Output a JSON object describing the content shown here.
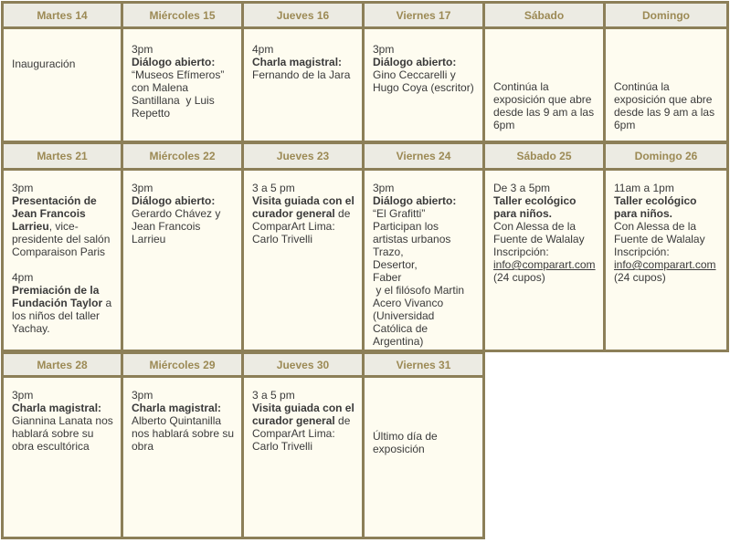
{
  "colors": {
    "border": "#8c7f58",
    "header_bg": "#ecebe3",
    "header_text": "#9c8a55",
    "cell_bg": "#fefcf0"
  },
  "weeks": [
    {
      "days": [
        {
          "header": "Martes 14",
          "lines": [
            [
              {
                "t": "Inauguración"
              }
            ]
          ]
        },
        {
          "header": "Miércoles 15",
          "lines": [
            [
              {
                "t": "3pm"
              }
            ],
            [
              {
                "t": "Diálogo abierto:",
                "b": true
              }
            ],
            [
              {
                "t": "“Museos Efímeros”"
              }
            ],
            [
              {
                "t": "con Malena"
              }
            ],
            [
              {
                "t": "Santillana  y Luis"
              }
            ],
            [
              {
                "t": "Repetto"
              }
            ]
          ]
        },
        {
          "header": "Jueves 16",
          "lines": [
            [
              {
                "t": "4pm"
              }
            ],
            [
              {
                "t": "Charla magistral:",
                "b": true
              }
            ],
            [
              {
                "t": "Fernando de la Jara"
              }
            ]
          ]
        },
        {
          "header": "Viernes 17",
          "lines": [
            [
              {
                "t": "3pm"
              }
            ],
            [
              {
                "t": "Diálogo abierto:",
                "b": true
              }
            ],
            [
              {
                "t": "Gino Ceccarelli y"
              }
            ],
            [
              {
                "t": "Hugo Coya (escritor)"
              }
            ]
          ]
        },
        {
          "header": "Sábado",
          "lines": [
            [
              {
                "t": "Continúa la"
              }
            ],
            [
              {
                "t": "exposición que abre"
              }
            ],
            [
              {
                "t": "desde las 9 am a las"
              }
            ],
            [
              {
                "t": "6pm"
              }
            ]
          ]
        },
        {
          "header": "Domingo",
          "lines": [
            [
              {
                "t": "Continúa la"
              }
            ],
            [
              {
                "t": "exposición que abre"
              }
            ],
            [
              {
                "t": "desde las 9 am a las"
              }
            ],
            [
              {
                "t": "6pm"
              }
            ]
          ]
        }
      ]
    },
    {
      "days": [
        {
          "header": "Martes 21",
          "lines": [
            [
              {
                "t": "3pm"
              }
            ],
            [
              {
                "t": "Presentación de",
                "b": true
              }
            ],
            [
              {
                "t": "Jean Francois",
                "b": true
              }
            ],
            [
              {
                "t": "Larrieu",
                "b": true
              },
              {
                "t": ", vice-"
              }
            ],
            [
              {
                "t": "presidente del salón"
              }
            ],
            [
              {
                "t": "Comparaison Paris"
              }
            ],
            [],
            [
              {
                "t": "4pm"
              }
            ],
            [
              {
                "t": "Premiación de la",
                "b": true
              }
            ],
            [
              {
                "t": "Fundación Taylor",
                "b": true
              },
              {
                "t": " a"
              }
            ],
            [
              {
                "t": "los niños del taller"
              }
            ],
            [
              {
                "t": "Yachay."
              }
            ]
          ]
        },
        {
          "header": "Miércoles 22",
          "lines": [
            [
              {
                "t": "3pm"
              }
            ],
            [
              {
                "t": "Diálogo abierto:",
                "b": true
              }
            ],
            [
              {
                "t": "Gerardo Chávez y"
              }
            ],
            [
              {
                "t": "Jean Francois"
              }
            ],
            [
              {
                "t": "Larrieu"
              }
            ]
          ]
        },
        {
          "header": "Jueves 23",
          "lines": [
            [
              {
                "t": "3 a 5 pm"
              }
            ],
            [
              {
                "t": "Visita guiada con el",
                "b": true
              }
            ],
            [
              {
                "t": "curador general",
                "b": true
              },
              {
                "t": " de"
              }
            ],
            [
              {
                "t": "ComparArt Lima:"
              }
            ],
            [
              {
                "t": "Carlo Trivelli"
              }
            ]
          ]
        },
        {
          "header": "Viernes 24",
          "lines": [
            [
              {
                "t": "3pm"
              }
            ],
            [
              {
                "t": "Diálogo abierto:",
                "b": true
              }
            ],
            [
              {
                "t": "“El Grafitti”"
              }
            ],
            [
              {
                "t": "Participan los"
              }
            ],
            [
              {
                "t": "artistas urbanos"
              }
            ],
            [
              {
                "t": "Trazo,"
              }
            ],
            [
              {
                "t": "Desertor,"
              }
            ],
            [
              {
                "t": "Faber"
              }
            ],
            [
              {
                "t": " y el filósofo Martin"
              }
            ],
            [
              {
                "t": "Acero Vivanco"
              }
            ],
            [
              {
                "t": "(Universidad"
              }
            ],
            [
              {
                "t": "Católica de"
              }
            ],
            [
              {
                "t": "Argentina)"
              }
            ]
          ]
        },
        {
          "header": "Sábado 25",
          "lines": [
            [
              {
                "t": "De 3 a 5pm"
              }
            ],
            [
              {
                "t": "Taller ecológico",
                "b": true
              }
            ],
            [
              {
                "t": "para niños.",
                "b": true
              }
            ],
            [
              {
                "t": "Con Alessa de la"
              }
            ],
            [
              {
                "t": "Fuente de Walalay"
              }
            ],
            [
              {
                "t": "Inscripción:"
              }
            ],
            [
              {
                "t": "info@comparart.com",
                "link": true
              }
            ],
            [
              {
                "t": "(24 cupos)"
              }
            ]
          ]
        },
        {
          "header": "Domingo 26",
          "lines": [
            [
              {
                "t": "11am a 1pm"
              }
            ],
            [
              {
                "t": "Taller ecológico",
                "b": true
              }
            ],
            [
              {
                "t": "para niños.",
                "b": true
              }
            ],
            [
              {
                "t": "Con Alessa de la"
              }
            ],
            [
              {
                "t": "Fuente de Walalay"
              }
            ],
            [
              {
                "t": "Inscripción:"
              }
            ],
            [
              {
                "t": "info@comparart.com",
                "link": true
              }
            ],
            [
              {
                "t": "(24 cupos)"
              }
            ]
          ]
        }
      ]
    },
    {
      "days": [
        {
          "header": "Martes 28",
          "lines": [
            [
              {
                "t": "3pm"
              }
            ],
            [
              {
                "t": "Charla magistral:",
                "b": true
              }
            ],
            [
              {
                "t": "Giannina Lanata nos"
              }
            ],
            [
              {
                "t": "hablará sobre su"
              }
            ],
            [
              {
                "t": "obra escultórica"
              }
            ]
          ]
        },
        {
          "header": "Miércoles 29",
          "lines": [
            [
              {
                "t": "3pm"
              }
            ],
            [
              {
                "t": "Charla magistral:",
                "b": true
              }
            ],
            [
              {
                "t": "Alberto Quintanilla"
              }
            ],
            [
              {
                "t": "nos hablará sobre su"
              }
            ],
            [
              {
                "t": "obra"
              }
            ]
          ]
        },
        {
          "header": "Jueves 30",
          "lines": [
            [
              {
                "t": "3 a 5 pm"
              }
            ],
            [
              {
                "t": "Visita guiada con el",
                "b": true
              }
            ],
            [
              {
                "t": "curador general",
                "b": true
              },
              {
                "t": " de"
              }
            ],
            [
              {
                "t": "ComparArt Lima:"
              }
            ],
            [
              {
                "t": "Carlo Trivelli"
              }
            ]
          ]
        },
        {
          "header": "Viernes 31",
          "lines": [
            [
              {
                "t": "Último día de"
              }
            ],
            [
              {
                "t": "exposición"
              }
            ]
          ]
        }
      ]
    }
  ]
}
